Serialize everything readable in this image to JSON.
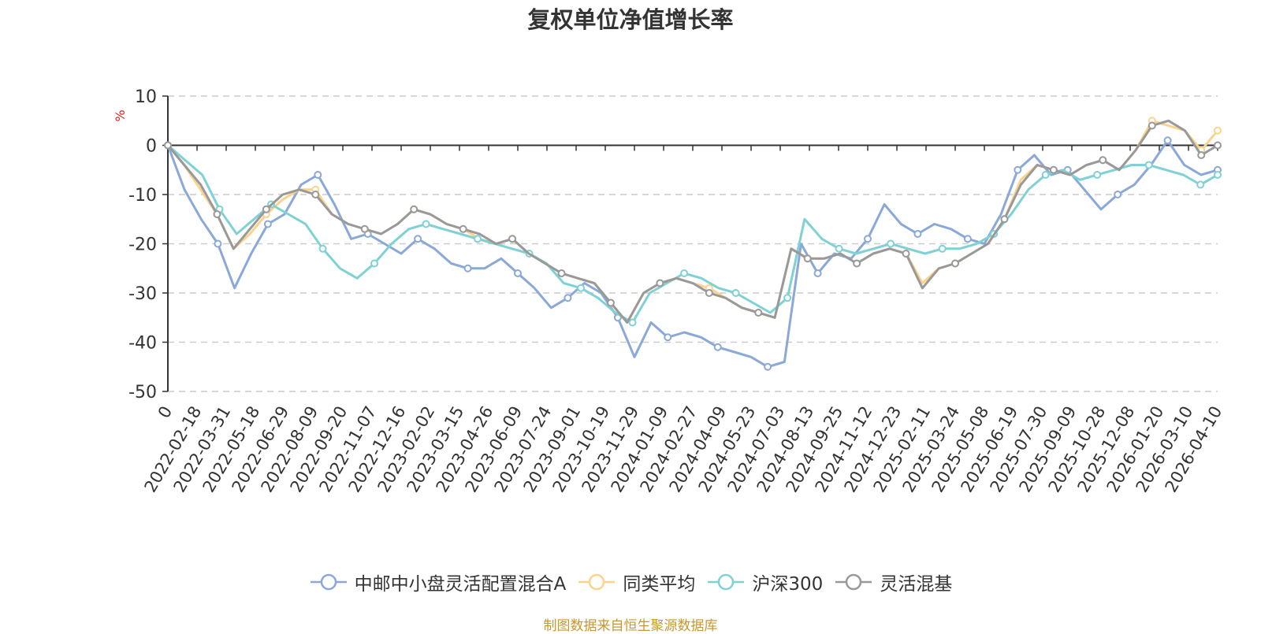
{
  "chart_data": {
    "type": "line",
    "title": "复权单位净值增长率",
    "ylabel": "%",
    "ylim": [
      -50,
      10
    ],
    "yticks": [
      10,
      0,
      -10,
      -20,
      -30,
      -40,
      -50
    ],
    "grid": true,
    "legend_position": "bottom",
    "x_labels": [
      "0",
      "2022-02-18",
      "2022-03-31",
      "2022-05-18",
      "2022-06-29",
      "2022-08-09",
      "2022-09-20",
      "2022-11-07",
      "2022-12-16",
      "2023-02-02",
      "2023-03-15",
      "2023-04-26",
      "2023-06-09",
      "2023-07-24",
      "2023-09-01",
      "2023-10-19",
      "2023-11-29",
      "2024-01-09",
      "2024-02-27",
      "2024-04-09",
      "2024-05-23",
      "2024-07-03",
      "2024-08-13",
      "2024-09-25",
      "2024-11-12",
      "2024-12-23",
      "2025-02-11",
      "2025-03-24",
      "2025-05-08",
      "2025-06-19",
      "2025-07-30",
      "2025-09-09",
      "2025-10-28",
      "2025-12-08",
      "2026-01-20",
      "2026-03-10",
      "2026-04-10"
    ],
    "series": [
      {
        "name": "中邮中小盘灵活配置混合A",
        "color": "#8aa8d8",
        "values": [
          0,
          -9,
          -15,
          -20,
          -29,
          -22,
          -16,
          -14,
          -8,
          -6,
          -12,
          -19,
          -18,
          -20,
          -22,
          -19,
          -21,
          -24,
          -25,
          -25,
          -23,
          -26,
          -29,
          -33,
          -31,
          -28,
          -30,
          -35,
          -43,
          -36,
          -39,
          -38,
          -39,
          -41,
          -42,
          -43,
          -45,
          -44,
          -20,
          -26,
          -22,
          -23,
          -19,
          -12,
          -16,
          -18,
          -16,
          -17,
          -19,
          -20,
          -14,
          -5,
          -2,
          -6,
          -5,
          -9,
          -13,
          -10,
          -8,
          -4,
          1,
          -4,
          -6,
          -5
        ]
      },
      {
        "name": "同类平均",
        "color": "#fbd38d",
        "values": [
          0,
          -4,
          -9,
          -14,
          -21,
          -18,
          -14,
          -11,
          -9,
          -9,
          -14,
          -16,
          -17,
          -18,
          -16,
          -13,
          -14,
          -16,
          -17,
          -19,
          -20,
          -19,
          -22,
          -24,
          -26,
          -27,
          -28,
          -32,
          -36,
          -30,
          -28,
          -27,
          -28,
          -29,
          -31,
          -33,
          -34,
          -35,
          -21,
          -23,
          -23,
          -22,
          -24,
          -22,
          -21,
          -22,
          -28,
          -25,
          -24,
          -22,
          -20,
          -15,
          -7,
          -4,
          -5,
          -6,
          -4,
          -3,
          -5,
          -1,
          5,
          4,
          3,
          -1,
          3
        ]
      },
      {
        "name": "沪深300",
        "color": "#7fd1d4",
        "values": [
          0,
          -3,
          -6,
          -13,
          -18,
          -15,
          -12,
          -14,
          -16,
          -21,
          -25,
          -27,
          -24,
          -20,
          -17,
          -16,
          -17,
          -18,
          -19,
          -20,
          -21,
          -22,
          -24,
          -28,
          -29,
          -31,
          -34,
          -36,
          -30,
          -28,
          -26,
          -27,
          -29,
          -30,
          -32,
          -34,
          -31,
          -15,
          -19,
          -21,
          -22,
          -21,
          -20,
          -21,
          -22,
          -21,
          -21,
          -20,
          -18,
          -14,
          -9,
          -6,
          -5,
          -7,
          -6,
          -5,
          -4,
          -4,
          -5,
          -6,
          -8,
          -6
        ]
      },
      {
        "name": "灵活混基",
        "color": "#999999",
        "values": [
          0,
          -4,
          -8,
          -14,
          -21,
          -17,
          -13,
          -10,
          -9,
          -10,
          -14,
          -16,
          -17,
          -18,
          -16,
          -13,
          -14,
          -16,
          -17,
          -18,
          -20,
          -19,
          -22,
          -24,
          -26,
          -27,
          -28,
          -32,
          -36,
          -30,
          -28,
          -27,
          -28,
          -30,
          -31,
          -33,
          -34,
          -35,
          -21,
          -23,
          -23,
          -22,
          -24,
          -22,
          -21,
          -22,
          -29,
          -25,
          -24,
          -22,
          -20,
          -15,
          -8,
          -4,
          -5,
          -6,
          -4,
          -3,
          -5,
          -1,
          4,
          5,
          3,
          -2,
          0
        ]
      }
    ]
  },
  "source_note": "制图数据来自恒生聚源数据库"
}
